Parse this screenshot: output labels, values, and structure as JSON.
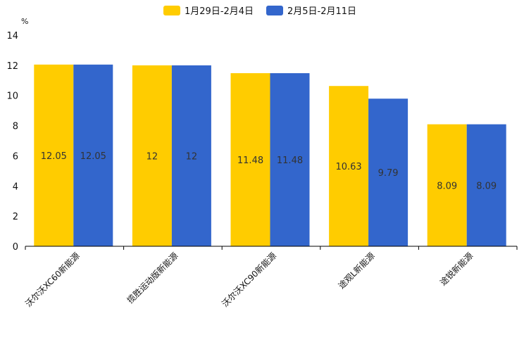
{
  "chart_data": {
    "type": "bar",
    "title": "",
    "xlabel": "",
    "ylabel": "%",
    "ylim": [
      0,
      14
    ],
    "yticks": [
      0,
      2,
      4,
      6,
      8,
      10,
      12,
      14
    ],
    "grid": false,
    "legend_position": "top-center",
    "categories": [
      "沃尔沃XC60新能源",
      "揽胜运动版新能源",
      "沃尔沃XC90新能源",
      "途观L新能源",
      "途锐新能源"
    ],
    "series": [
      {
        "name": "1月29日-2月4日",
        "color": "#FFCC00",
        "values": [
          12.05,
          12,
          11.48,
          10.63,
          8.09
        ]
      },
      {
        "name": "2月5日-2月11日",
        "color": "#3366CC",
        "values": [
          12.05,
          12,
          11.48,
          9.79,
          8.09
        ]
      }
    ]
  }
}
